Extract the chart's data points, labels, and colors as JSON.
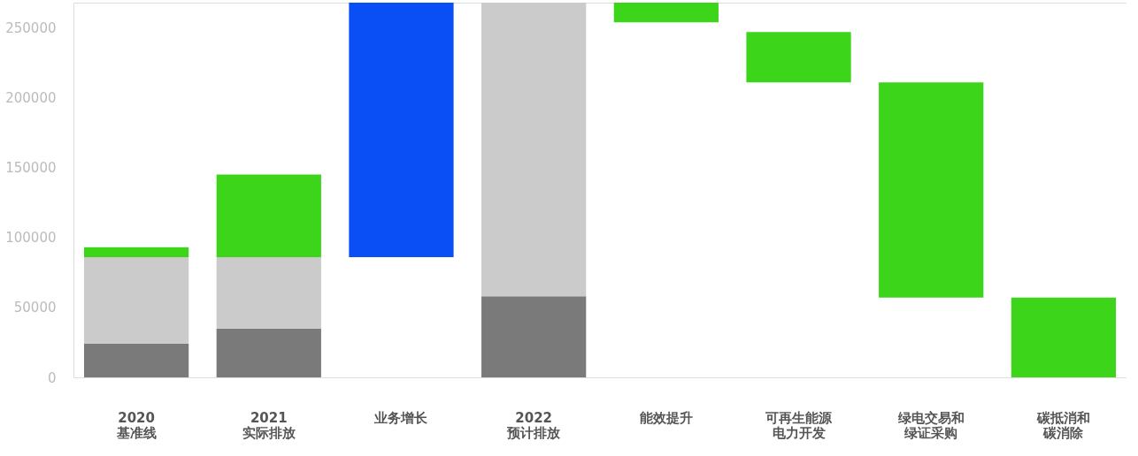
{
  "chart_data": {
    "type": "bar",
    "stacked": true,
    "categories": [
      "2020\n基准线",
      "2021\n实际排放",
      "业务增长",
      "2022\n预计排放",
      "能效提升",
      "可再生能源电力开发",
      "绿电交易和绿证采购",
      "碳抵消和碳消除"
    ],
    "series": [
      {
        "color": "#7a7a7a",
        "values": [
          24000,
          35000,
          null,
          58000,
          null,
          null,
          null,
          null
        ]
      },
      {
        "color": "#cbcbcb",
        "values": [
          62000,
          51000,
          null,
          210000,
          null,
          null,
          null,
          null
        ]
      },
      {
        "color": "#3dd51a",
        "values": [
          7000,
          59000,
          null,
          null,
          null,
          null,
          null,
          null
        ]
      },
      {
        "colors": [
          "#3dd51a",
          "#3dd51a",
          "#0a4ff5",
          "#3dd51a",
          "#3dd51a",
          "#3dd51a",
          "#3dd51a",
          "#3dd51a"
        ],
        "values": [
          null,
          null,
          182000,
          null,
          14000,
          36000,
          154000,
          57000
        ],
        "base": [
          null,
          null,
          86000,
          null,
          254000,
          211000,
          57000,
          0
        ]
      }
    ],
    "ylim": [
      0,
      268000
    ],
    "yticks": [
      0,
      50000,
      100000,
      150000,
      200000,
      250000
    ],
    "grid": false
  }
}
